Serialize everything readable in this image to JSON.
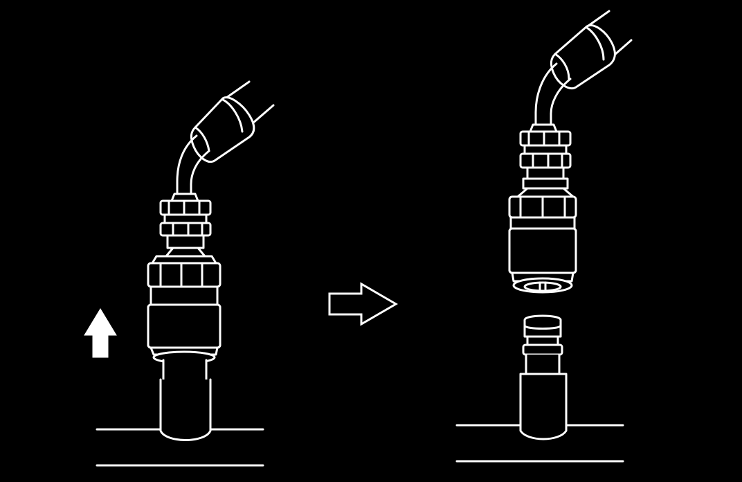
{
  "figure": {
    "background": "#000000",
    "line_color": "#ffffff",
    "panels": [
      {
        "id": "connected",
        "parts": [
          "hose",
          "fitting-nut",
          "coupler-knurled-sleeve",
          "service-port"
        ],
        "arrow": "up-arrow-solid"
      },
      {
        "id": "disconnected",
        "parts": [
          "hose",
          "fitting-nut",
          "coupler-knurled-sleeve",
          "service-port"
        ]
      }
    ],
    "transition_arrow": "right-arrow-outline"
  }
}
